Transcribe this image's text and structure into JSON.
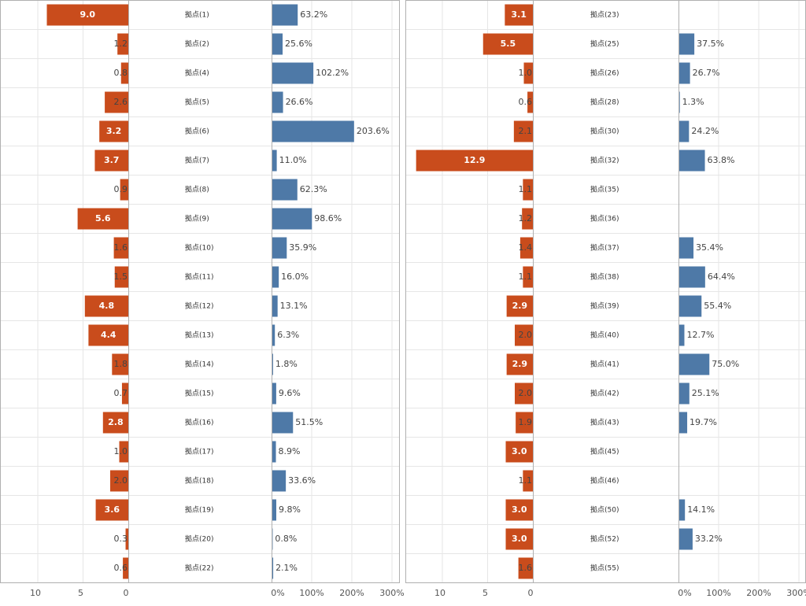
{
  "colors": {
    "bar_count": "#c94c1c",
    "bar_pct": "#4e79a7",
    "grid": "#e6e6e6",
    "border": "#b0b0b0"
  },
  "chart_data": [
    {
      "type": "bar",
      "title": "",
      "left_axis": {
        "ticks": [
          "10",
          "5",
          "0"
        ],
        "range": [
          12.5,
          0
        ]
      },
      "right_axis": {
        "ticks": [
          "0%",
          "100%",
          "200%",
          "300%"
        ],
        "range": [
          0,
          320
        ]
      },
      "rows": [
        {
          "name": "拠点(1)",
          "count": 9.0,
          "count_label": "9.0",
          "pct": 63.2,
          "pct_label": "63.2%"
        },
        {
          "name": "拠点(2)",
          "count": 1.2,
          "count_label": "1.2",
          "pct": 25.6,
          "pct_label": "25.6%"
        },
        {
          "name": "拠点(4)",
          "count": 0.8,
          "count_label": "0.8",
          "pct": 102.2,
          "pct_label": "102.2%"
        },
        {
          "name": "拠点(5)",
          "count": 2.6,
          "count_label": "2.6",
          "pct": 26.6,
          "pct_label": "26.6%"
        },
        {
          "name": "拠点(6)",
          "count": 3.2,
          "count_label": "3.2",
          "pct": 203.6,
          "pct_label": "203.6%"
        },
        {
          "name": "拠点(7)",
          "count": 3.7,
          "count_label": "3.7",
          "pct": 11.0,
          "pct_label": "11.0%"
        },
        {
          "name": "拠点(8)",
          "count": 0.9,
          "count_label": "0.9",
          "pct": 62.3,
          "pct_label": "62.3%"
        },
        {
          "name": "拠点(9)",
          "count": 5.6,
          "count_label": "5.6",
          "pct": 98.6,
          "pct_label": "98.6%"
        },
        {
          "name": "拠点(10)",
          "count": 1.6,
          "count_label": "1.6",
          "pct": 35.9,
          "pct_label": "35.9%"
        },
        {
          "name": "拠点(11)",
          "count": 1.5,
          "count_label": "1.5",
          "pct": 16.0,
          "pct_label": "16.0%"
        },
        {
          "name": "拠点(12)",
          "count": 4.8,
          "count_label": "4.8",
          "pct": 13.1,
          "pct_label": "13.1%"
        },
        {
          "name": "拠点(13)",
          "count": 4.4,
          "count_label": "4.4",
          "pct": 6.3,
          "pct_label": "6.3%"
        },
        {
          "name": "拠点(14)",
          "count": 1.8,
          "count_label": "1.8",
          "pct": 1.8,
          "pct_label": "1.8%"
        },
        {
          "name": "拠点(15)",
          "count": 0.7,
          "count_label": "0.7",
          "pct": 9.6,
          "pct_label": "9.6%"
        },
        {
          "name": "拠点(16)",
          "count": 2.8,
          "count_label": "2.8",
          "pct": 51.5,
          "pct_label": "51.5%"
        },
        {
          "name": "拠点(17)",
          "count": 1.0,
          "count_label": "1.0",
          "pct": 8.9,
          "pct_label": "8.9%"
        },
        {
          "name": "拠点(18)",
          "count": 2.0,
          "count_label": "2.0",
          "pct": 33.6,
          "pct_label": "33.6%"
        },
        {
          "name": "拠点(19)",
          "count": 3.6,
          "count_label": "3.6",
          "pct": 9.8,
          "pct_label": "9.8%"
        },
        {
          "name": "拠点(20)",
          "count": 0.3,
          "count_label": "0.3",
          "pct": 0.8,
          "pct_label": "0.8%"
        },
        {
          "name": "拠点(22)",
          "count": 0.6,
          "count_label": "0.6",
          "pct": 2.1,
          "pct_label": "2.1%"
        }
      ]
    },
    {
      "type": "bar",
      "title": "",
      "left_axis": {
        "ticks": [
          "10",
          "5",
          "0"
        ],
        "range": [
          12.5,
          0
        ]
      },
      "right_axis": {
        "ticks": [
          "0%",
          "100%",
          "200%",
          "300%"
        ],
        "range": [
          0,
          320
        ]
      },
      "rows": [
        {
          "name": "拠点(23)",
          "count": 3.1,
          "count_label": "3.1",
          "pct": null,
          "pct_label": ""
        },
        {
          "name": "拠点(25)",
          "count": 5.5,
          "count_label": "5.5",
          "pct": 37.5,
          "pct_label": "37.5%"
        },
        {
          "name": "拠点(26)",
          "count": 1.0,
          "count_label": "1.0",
          "pct": 26.7,
          "pct_label": "26.7%"
        },
        {
          "name": "拠点(28)",
          "count": 0.6,
          "count_label": "0.6",
          "pct": 1.3,
          "pct_label": "1.3%"
        },
        {
          "name": "拠点(30)",
          "count": 2.1,
          "count_label": "2.1",
          "pct": 24.2,
          "pct_label": "24.2%"
        },
        {
          "name": "拠点(32)",
          "count": 12.9,
          "count_label": "12.9",
          "pct": 63.8,
          "pct_label": "63.8%"
        },
        {
          "name": "拠点(35)",
          "count": 1.1,
          "count_label": "1.1",
          "pct": null,
          "pct_label": ""
        },
        {
          "name": "拠点(36)",
          "count": 1.2,
          "count_label": "1.2",
          "pct": null,
          "pct_label": ""
        },
        {
          "name": "拠点(37)",
          "count": 1.4,
          "count_label": "1.4",
          "pct": 35.4,
          "pct_label": "35.4%"
        },
        {
          "name": "拠点(38)",
          "count": 1.1,
          "count_label": "1.1",
          "pct": 64.4,
          "pct_label": "64.4%"
        },
        {
          "name": "拠点(39)",
          "count": 2.9,
          "count_label": "2.9",
          "pct": 55.4,
          "pct_label": "55.4%"
        },
        {
          "name": "拠点(40)",
          "count": 2.0,
          "count_label": "2.0",
          "pct": 12.7,
          "pct_label": "12.7%"
        },
        {
          "name": "拠点(41)",
          "count": 2.9,
          "count_label": "2.9",
          "pct": 75.0,
          "pct_label": "75.0%"
        },
        {
          "name": "拠点(42)",
          "count": 2.0,
          "count_label": "2.0",
          "pct": 25.1,
          "pct_label": "25.1%"
        },
        {
          "name": "拠点(43)",
          "count": 1.9,
          "count_label": "1.9",
          "pct": 19.7,
          "pct_label": "19.7%"
        },
        {
          "name": "拠点(45)",
          "count": 3.0,
          "count_label": "3.0",
          "pct": null,
          "pct_label": ""
        },
        {
          "name": "拠点(46)",
          "count": 1.1,
          "count_label": "1.1",
          "pct": null,
          "pct_label": ""
        },
        {
          "name": "拠点(50)",
          "count": 3.0,
          "count_label": "3.0",
          "pct": 14.1,
          "pct_label": "14.1%"
        },
        {
          "name": "拠点(52)",
          "count": 3.0,
          "count_label": "3.0",
          "pct": 33.2,
          "pct_label": "33.2%"
        },
        {
          "name": "拠点(55)",
          "count": 1.6,
          "count_label": "1.6",
          "pct": null,
          "pct_label": ""
        }
      ]
    }
  ]
}
